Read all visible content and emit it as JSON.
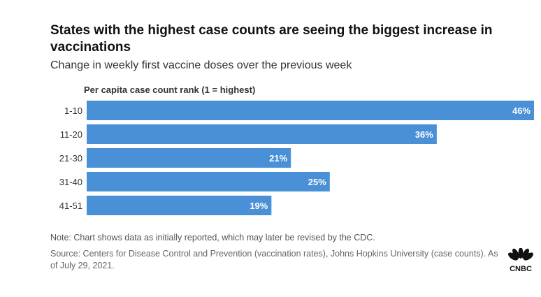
{
  "title": "States with the highest case counts are seeing the biggest increase in vaccinations",
  "subtitle": "Change in weekly first vaccine doses over the previous week",
  "note": "Note: Chart shows data as initially reported, which may later be revised by the CDC.",
  "source": "Source: Centers for Disease Control and Prevention (vaccination rates), Johns Hopkins University (case counts). As of July 29, 2021.",
  "logo": {
    "text": "CNBC",
    "icon": "peacock-logo-icon"
  },
  "chart_data": {
    "type": "bar",
    "orientation": "horizontal",
    "ylabel": "Per capita case count rank (1 = highest)",
    "categories": [
      "1-10",
      "11-20",
      "21-30",
      "31-40",
      "41-51"
    ],
    "values": [
      46,
      36,
      21,
      25,
      19
    ],
    "value_labels": [
      "46%",
      "36%",
      "21%",
      "25%",
      "19%"
    ],
    "unit": "%",
    "xlim": [
      0,
      46
    ],
    "bar_color": "#4a90d6",
    "label_color": "#ffffff",
    "grid": false,
    "legend": "none"
  }
}
